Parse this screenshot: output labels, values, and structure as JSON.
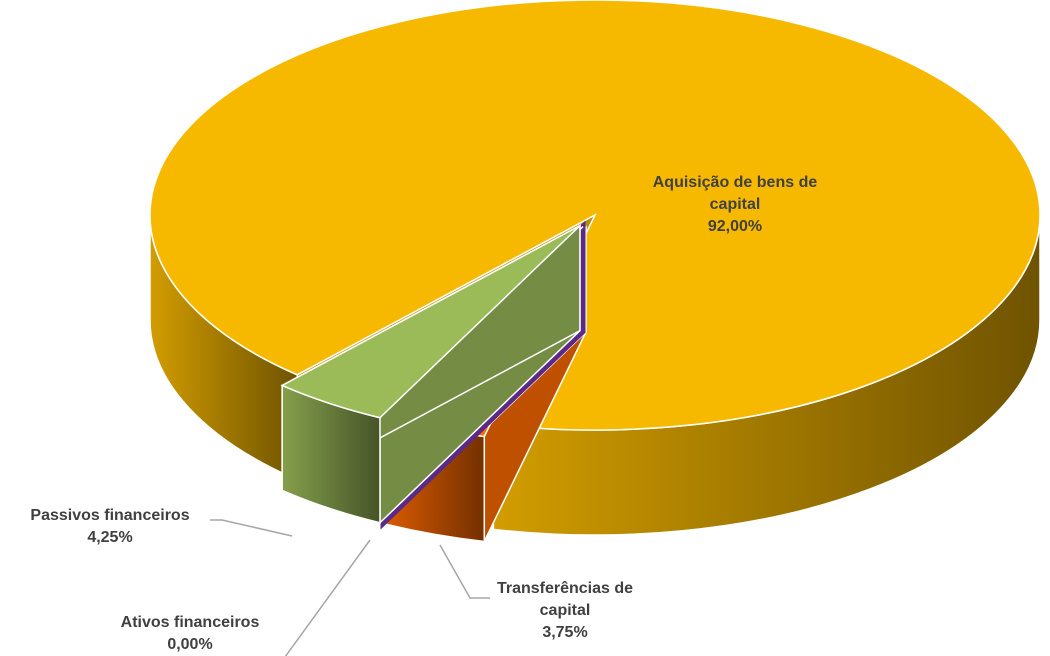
{
  "chart_data": {
    "type": "pie3d",
    "categories": [
      "Aquisição de bens de capital",
      "Transferências de capital",
      "Ativos financeiros",
      "Passivos financeiros"
    ],
    "values": [
      92,
      3.75,
      0,
      4.25
    ],
    "value_labels": [
      "92,00%",
      "3,75%",
      "0,00%",
      "4,25%"
    ],
    "colors": [
      "#f7b900",
      "#ff6a00",
      "#5b2a86",
      "#9bbb59"
    ]
  }
}
